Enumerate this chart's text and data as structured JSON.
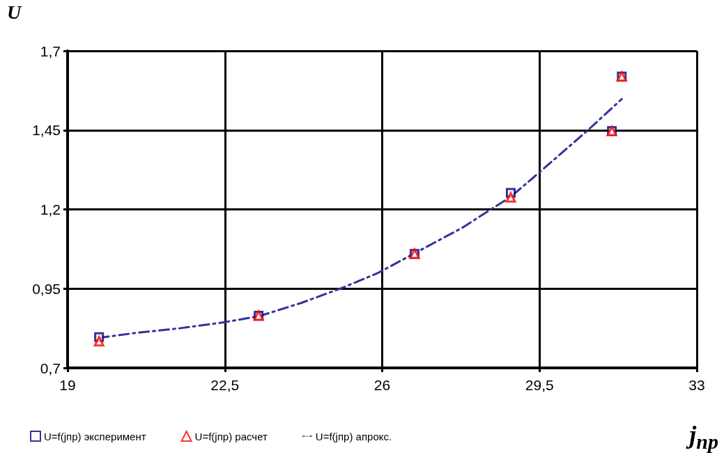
{
  "chart_data": {
    "type": "scatter",
    "xlabel": "j$_{np}$",
    "ylabel": "U",
    "xlim": [
      19,
      33
    ],
    "xticks": [
      19,
      {
        "value": 22.5,
        "label": "22,5"
      },
      26,
      {
        "value": 29.5,
        "label": "29,5"
      },
      33
    ],
    "ylim": [
      0.7,
      1.7
    ],
    "yticks": [
      {
        "value": 0.7,
        "label": "0,7"
      },
      {
        "value": 0.95,
        "label": "0,95"
      },
      {
        "value": 1.2,
        "label": "1,2"
      },
      {
        "value": 1.45,
        "label": "1,45"
      },
      {
        "value": 1.7,
        "label": "1,7"
      }
    ],
    "grid": true,
    "legend": "bottom left",
    "series": [
      {
        "name": "U=f(jпр) эксперимент",
        "color": "#000080",
        "marker": "square",
        "x": [
          19.7,
          23.25,
          26.72,
          28.86,
          31.11,
          31.33
        ],
        "values": [
          0.797,
          0.865,
          1.06,
          1.252,
          1.447,
          1.619
        ]
      },
      {
        "name": "U=f(jпр) расчет",
        "color": "#ff0000",
        "marker": "triangle",
        "x": [
          19.7,
          23.25,
          26.72,
          28.86,
          31.11,
          31.33
        ],
        "values": [
          0.784,
          0.865,
          1.06,
          1.238,
          1.447,
          1.619
        ]
      },
      {
        "name": "U=f(jпр) апрокс.",
        "type": "line",
        "color": "#333399",
        "marker": "none",
        "line_style": "dashed",
        "x": [
          19.7,
          20.5,
          21.5,
          22.43,
          23.26,
          24.2,
          25.12,
          25.9,
          26.7,
          27.78,
          28.86,
          29.36,
          30.57,
          31.33
        ],
        "values": [
          0.795,
          0.81,
          0.825,
          0.843,
          0.863,
          0.905,
          0.953,
          0.999,
          1.06,
          1.142,
          1.24,
          1.3,
          1.449,
          1.548
        ]
      }
    ]
  }
}
